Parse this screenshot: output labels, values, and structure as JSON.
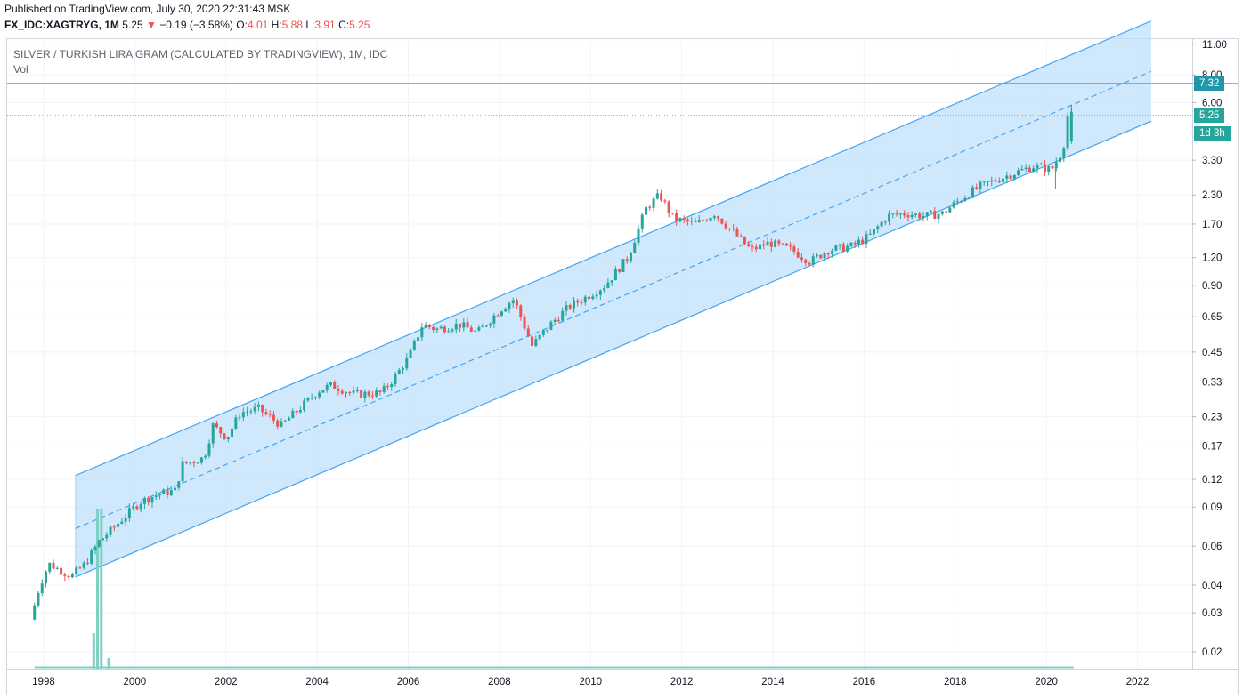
{
  "header": {
    "published": "Published on TradingView.com, July 30, 2020 22:31:43 MSK",
    "symbol": "FX_IDC:XAGTRYG, 1M",
    "last": "5.25",
    "arrow": "▼",
    "change": "−0.19 (−3.58%)",
    "open_label": "O:",
    "open": "4.01",
    "high_label": "H:",
    "high": "5.88",
    "low_label": "L:",
    "low": "3.91",
    "close_label": "C:",
    "close": "5.25"
  },
  "legend": {
    "title": "SILVER / TURKISH LIRA GRAM (CALCULATED BY TRADINGVIEW), 1M, IDC",
    "vol": "Vol"
  },
  "price_tags": {
    "line_level": "7.32",
    "current": "5.25",
    "countdown": "1d 3h"
  },
  "colors": {
    "up": "#26a69a",
    "down": "#ef5350",
    "channel_line": "#42a5f5",
    "channel_fill": "#bbdefb",
    "hline": "#26a0a0",
    "grid": "#f0f3fa",
    "volume": "#7fcfc5"
  },
  "chart_data": {
    "type": "candlestick",
    "scale": "log",
    "title": "SILVER / TURKISH LIRA GRAM (CALCULATED BY TRADINGVIEW), 1M, IDC",
    "y_ticks": [
      0.02,
      0.03,
      0.04,
      0.06,
      0.09,
      0.12,
      0.17,
      0.23,
      0.33,
      0.45,
      0.65,
      0.9,
      1.2,
      1.7,
      2.3,
      3.3,
      6.0,
      8.0,
      11.0
    ],
    "x_ticks": [
      "1998",
      "2000",
      "2002",
      "2004",
      "2006",
      "2008",
      "2010",
      "2012",
      "2014",
      "2016",
      "2018",
      "2020",
      "2022"
    ],
    "x_range": [
      1997.2,
      2023.2
    ],
    "y_range": [
      0.0168,
      11.6
    ],
    "horizontal_line": 7.32,
    "current_price": 5.25,
    "regression_channel": {
      "start": 1998.7,
      "end": 2022.3,
      "mid_start": 0.072,
      "mid_end": 8.3,
      "upper_start": 0.125,
      "upper_end": 14.0,
      "lower_start": 0.0435,
      "lower_end": 4.95
    },
    "price_path": [
      [
        1997.8,
        0.028
      ],
      [
        1998.0,
        0.04
      ],
      [
        1998.2,
        0.05
      ],
      [
        1998.5,
        0.046
      ],
      [
        1998.7,
        0.044
      ],
      [
        1999.0,
        0.05
      ],
      [
        1999.3,
        0.063
      ],
      [
        1999.6,
        0.072
      ],
      [
        1999.9,
        0.083
      ],
      [
        2000.2,
        0.095
      ],
      [
        2000.6,
        0.103
      ],
      [
        2001.0,
        0.107
      ],
      [
        2001.1,
        0.14
      ],
      [
        2001.6,
        0.15
      ],
      [
        2001.8,
        0.21
      ],
      [
        2002.1,
        0.185
      ],
      [
        2002.4,
        0.24
      ],
      [
        2002.8,
        0.25
      ],
      [
        2003.3,
        0.21
      ],
      [
        2003.6,
        0.24
      ],
      [
        2004.1,
        0.3
      ],
      [
        2004.4,
        0.32
      ],
      [
        2004.9,
        0.29
      ],
      [
        2005.5,
        0.295
      ],
      [
        2005.8,
        0.35
      ],
      [
        2006.1,
        0.43
      ],
      [
        2006.4,
        0.6
      ],
      [
        2006.7,
        0.57
      ],
      [
        2007.2,
        0.6
      ],
      [
        2007.6,
        0.55
      ],
      [
        2008.1,
        0.7
      ],
      [
        2008.4,
        0.78
      ],
      [
        2008.8,
        0.48
      ],
      [
        2009.2,
        0.6
      ],
      [
        2009.6,
        0.72
      ],
      [
        2010.0,
        0.8
      ],
      [
        2010.4,
        0.9
      ],
      [
        2010.9,
        1.2
      ],
      [
        2011.3,
        2.0
      ],
      [
        2011.6,
        2.3
      ],
      [
        2011.9,
        1.8
      ],
      [
        2012.4,
        1.7
      ],
      [
        2012.8,
        1.9
      ],
      [
        2013.3,
        1.5
      ],
      [
        2013.6,
        1.3
      ],
      [
        2014.0,
        1.4
      ],
      [
        2014.5,
        1.3
      ],
      [
        2014.9,
        1.15
      ],
      [
        2015.3,
        1.3
      ],
      [
        2015.8,
        1.35
      ],
      [
        2016.2,
        1.5
      ],
      [
        2016.6,
        1.85
      ],
      [
        2017.0,
        1.9
      ],
      [
        2017.4,
        1.85
      ],
      [
        2017.8,
        1.9
      ],
      [
        2018.2,
        2.2
      ],
      [
        2018.6,
        2.5
      ],
      [
        2019.0,
        2.7
      ],
      [
        2019.4,
        2.9
      ],
      [
        2019.8,
        3.1
      ],
      [
        2020.2,
        3.0
      ],
      [
        2020.45,
        3.7
      ],
      [
        2020.55,
        5.25
      ]
    ],
    "volume_spike": {
      "x": [
        1999.1,
        1999.3
      ],
      "note": "single large volume bars near 1999"
    }
  }
}
